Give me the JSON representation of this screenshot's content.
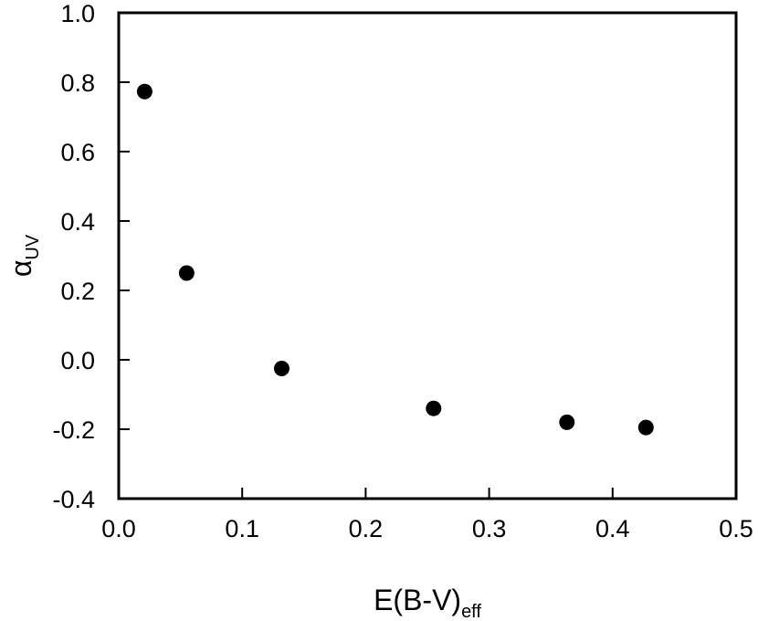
{
  "chart_data": {
    "type": "scatter",
    "xlabel": {
      "main": "E(B-V)",
      "sub": "eff"
    },
    "ylabel": {
      "main": "α",
      "sub": "UV"
    },
    "xlim": [
      0.0,
      0.5
    ],
    "ylim": [
      -0.4,
      1.0
    ],
    "xticks": [
      0.0,
      0.1,
      0.2,
      0.3,
      0.4,
      0.5
    ],
    "yticks": [
      -0.4,
      -0.2,
      0.0,
      0.2,
      0.4,
      0.6,
      0.8,
      1.0
    ],
    "xtick_labels": [
      "0.0",
      "0.1",
      "0.2",
      "0.3",
      "0.4",
      "0.5"
    ],
    "ytick_labels": [
      "-0.4",
      "-0.2",
      "0.0",
      "0.2",
      "0.4",
      "0.6",
      "0.8",
      "1.0"
    ],
    "grid": false,
    "legend": "none",
    "marker_color": "#000000",
    "points": [
      {
        "x": 0.021,
        "y": 0.773
      },
      {
        "x": 0.055,
        "y": 0.25
      },
      {
        "x": 0.132,
        "y": -0.025
      },
      {
        "x": 0.255,
        "y": -0.14
      },
      {
        "x": 0.363,
        "y": -0.18
      },
      {
        "x": 0.427,
        "y": -0.195
      }
    ]
  }
}
